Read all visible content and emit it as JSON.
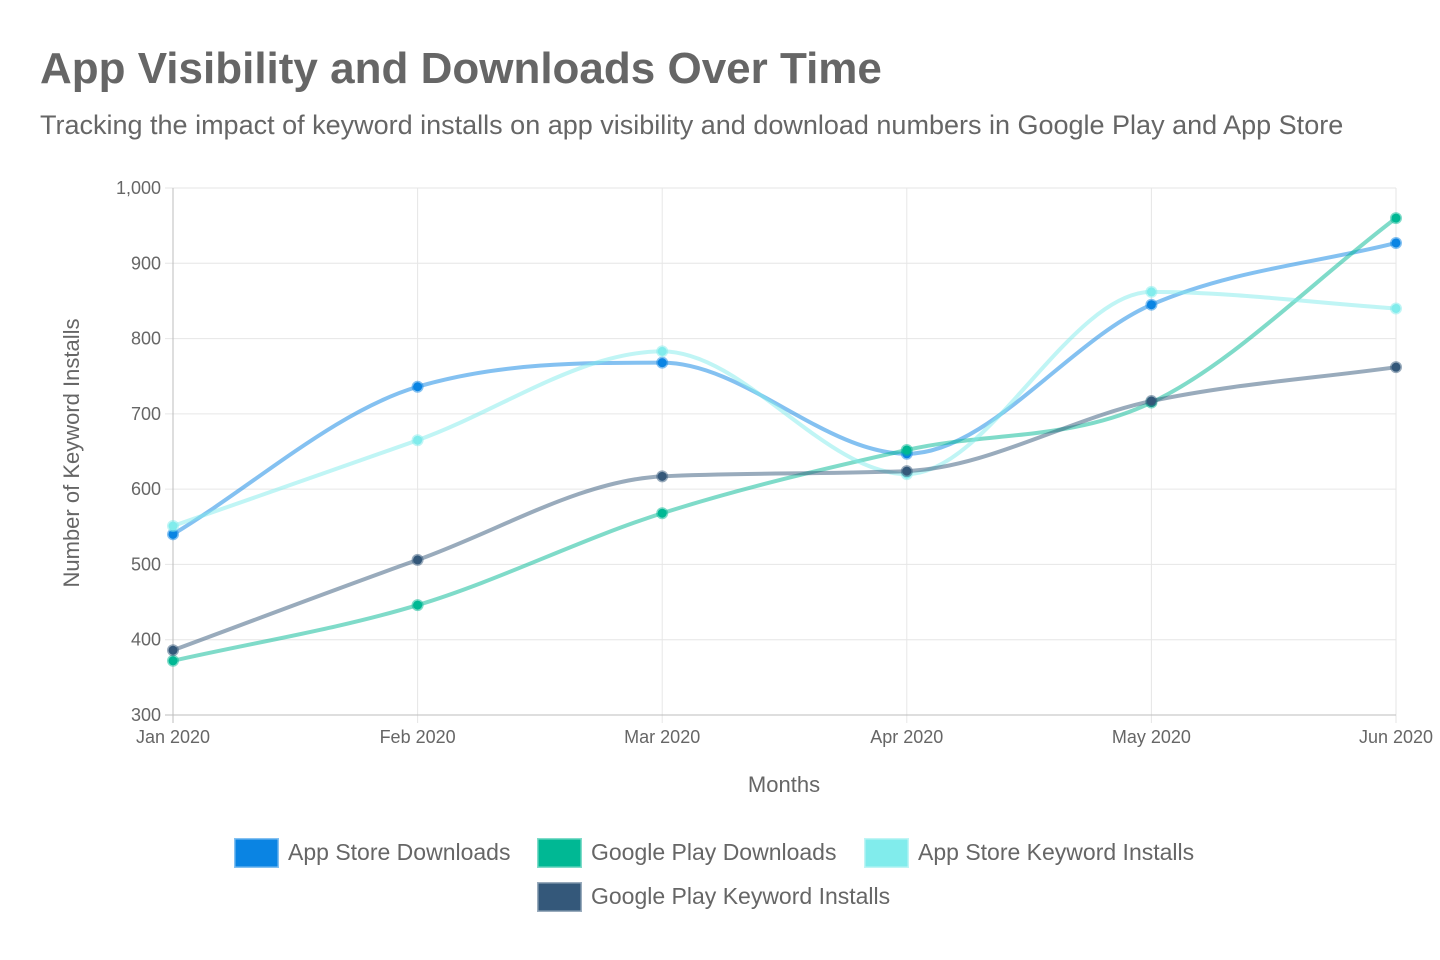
{
  "title": "App Visibility and Downloads Over Time",
  "subtitle": "Tracking the impact of keyword installs on app visibility and download numbers in Google Play and App Store",
  "chart_data": {
    "type": "line",
    "title": "App Visibility and Downloads Over Time",
    "subtitle": "Tracking the impact of keyword installs on app visibility and download numbers in Google Play and App Store",
    "xlabel": "Months",
    "ylabel": "Number of Keyword Installs",
    "categories": [
      "Jan 2020",
      "Feb 2020",
      "Mar 2020",
      "Apr 2020",
      "May 2020",
      "Jun 2020"
    ],
    "ylim": [
      300,
      1000
    ],
    "yticks": [
      "300",
      "400",
      "500",
      "600",
      "700",
      "800",
      "900",
      "1,000"
    ],
    "grid": true,
    "legend_position": "bottom",
    "series": [
      {
        "name": "App Store Downloads",
        "color": "#0A84E3",
        "values": [
          540,
          736,
          768,
          647,
          845,
          927
        ]
      },
      {
        "name": "Google Play Downloads",
        "color": "#00B894",
        "values": [
          372,
          446,
          568,
          652,
          715,
          960
        ]
      },
      {
        "name": "App Store Keyword Installs",
        "color": "#81ECEC",
        "values": [
          551,
          665,
          783,
          620,
          862,
          840
        ]
      },
      {
        "name": "Google Play Keyword Installs",
        "color": "#34587A",
        "values": [
          386,
          506,
          617,
          624,
          717,
          762
        ]
      }
    ]
  }
}
